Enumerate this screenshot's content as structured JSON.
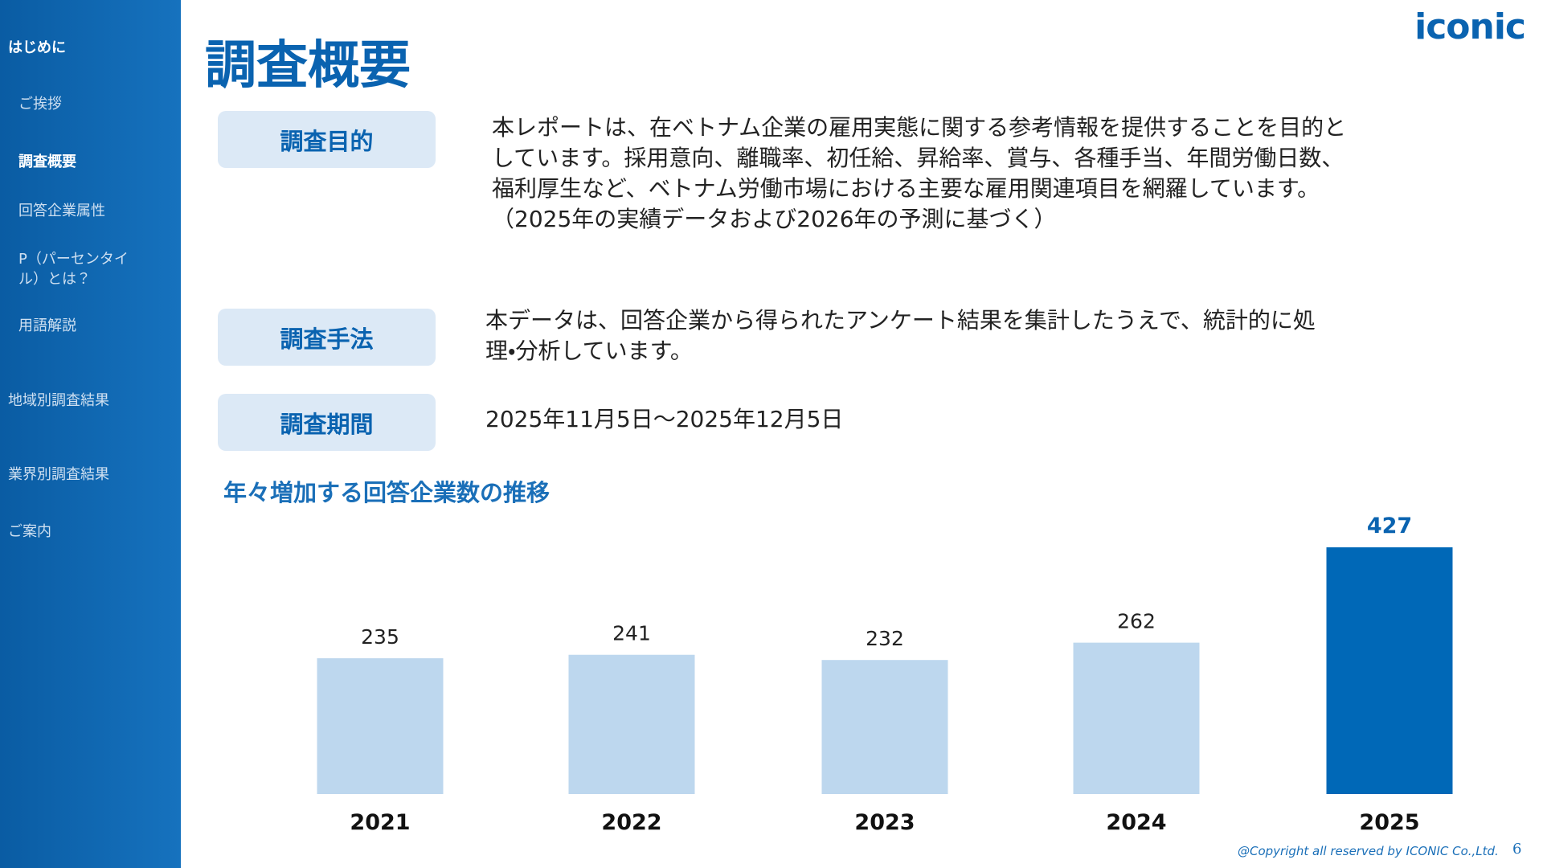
{
  "sidebar": {
    "items": [
      {
        "text": "はじめに",
        "level": "top",
        "active": true
      },
      {
        "text": "ご挨拶",
        "level": "sub",
        "active": false
      },
      {
        "text": "調査概要",
        "level": "sub",
        "active": true
      },
      {
        "text": "回答企業属性",
        "level": "sub",
        "active": false
      },
      {
        "text": "P（パーセンタイル）とは？",
        "level": "sub",
        "active": false
      },
      {
        "text": "用語解説",
        "level": "sub",
        "active": false
      },
      {
        "text": "地域別調査結果",
        "level": "top",
        "active": false
      },
      {
        "text": "業界別調査結果",
        "level": "top",
        "active": false
      },
      {
        "text": "ご案内",
        "level": "top",
        "active": false
      }
    ]
  },
  "header": {
    "title": "調査概要",
    "logo": "iconic"
  },
  "sections": [
    {
      "label": "調査目的",
      "lines": [
        "本レポートは、在ベトナム企業の雇用実態に関する参考情報を提供することを目的と",
        "しています。採用意向、離職率、初任給、昇給率、賞与、各種手当、年間労働日数、",
        "福利厚生など、ベトナム労働市場における主要な雇用関連項目を網羅しています。",
        "（2025年の実績データおよび2026年の予測に基づく）"
      ]
    },
    {
      "label": "調査手法",
      "lines": [
        "本データは、回答企業から得られたアンケート結果を集計したうえで、統計的に処",
        "理・分析しています。"
      ]
    },
    {
      "label": "調査期間",
      "lines": [
        "2025年11月5日～2025年12月5日"
      ]
    }
  ],
  "chart_data": {
    "type": "bar",
    "title": "年々増加する回答企業数の推移",
    "categories": [
      "2021",
      "2022",
      "2023",
      "2024",
      "2025"
    ],
    "values": [
      235,
      241,
      232,
      262,
      427
    ],
    "colors": [
      "#bdd7ee",
      "#bdd7ee",
      "#bdd7ee",
      "#bdd7ee",
      "#0068b7"
    ]
  },
  "footer": {
    "copyright": "@Copyright all reserved by ICONIC Co.,Ltd.",
    "page": "6"
  }
}
